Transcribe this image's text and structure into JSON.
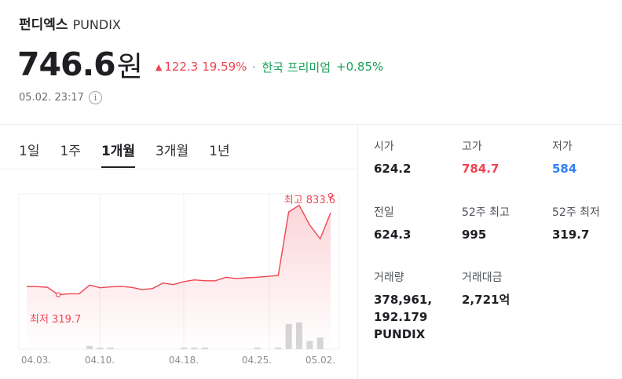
{
  "coin": {
    "name_ko": "펀디엑스",
    "ticker": "PUNDIX"
  },
  "price": {
    "value": "746.6",
    "unit": "원",
    "change_amount": "122.3",
    "change_rate": "19.59%",
    "premium_label": "한국 프리미엄",
    "premium_value": "+0.85%"
  },
  "timestamp": "05.02. 23:17",
  "tabs": [
    {
      "label": "1일"
    },
    {
      "label": "1주"
    },
    {
      "label": "1개월"
    },
    {
      "label": "3개월"
    },
    {
      "label": "1년"
    }
  ],
  "active_tab": "1개월",
  "colors": {
    "up": "#f04452",
    "down": "#3182f6",
    "premium": "#19a05a",
    "volume": "#d5d7da"
  },
  "chart_data": {
    "type": "line",
    "x": [
      "04.03",
      "04.04",
      "04.05",
      "04.06",
      "04.07",
      "04.08",
      "04.09",
      "04.10",
      "04.11",
      "04.12",
      "04.13",
      "04.14",
      "04.15",
      "04.16",
      "04.17",
      "04.18",
      "04.19",
      "04.20",
      "04.21",
      "04.22",
      "04.23",
      "04.24",
      "04.25",
      "04.26",
      "04.27",
      "04.28",
      "04.29",
      "04.30",
      "05.01",
      "05.02"
    ],
    "values": [
      367,
      366,
      362,
      320,
      325,
      325,
      375,
      360,
      365,
      368,
      362,
      350,
      355,
      387,
      378,
      395,
      405,
      400,
      400,
      420,
      413,
      417,
      420,
      425,
      430,
      795,
      833,
      720,
      640,
      790
    ],
    "volume": [
      0,
      0,
      0,
      0,
      0,
      0,
      2,
      1,
      1,
      0,
      0,
      0,
      0,
      0,
      0,
      1,
      1,
      1,
      0,
      0,
      0,
      0,
      1,
      0,
      1,
      15,
      16,
      5,
      7,
      0
    ],
    "x_tick_labels": [
      "04.03.",
      "04.10.",
      "04.18.",
      "04.25.",
      "05.02."
    ],
    "max_label": "최고 833.6",
    "min_label": "최저 319.7",
    "max_value": 833.6,
    "min_value": 319.7
  },
  "stats": {
    "open_label": "시가",
    "open": "624.2",
    "high_label": "고가",
    "high": "784.7",
    "low_label": "저가",
    "low": "584",
    "prev_label": "전일",
    "prev": "624.3",
    "w52_high_label": "52주 최고",
    "w52_high": "995",
    "w52_low_label": "52주 최저",
    "w52_low": "319.7",
    "volume_label": "거래량",
    "volume": "378,961,192.179 PUNDIX",
    "turnover_label": "거래대금",
    "turnover": "2,721억"
  }
}
